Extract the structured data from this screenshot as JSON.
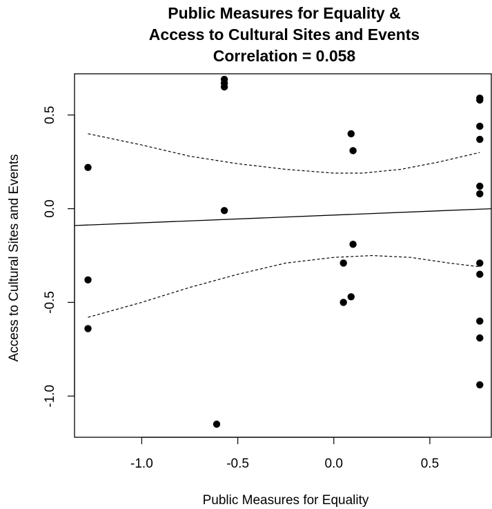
{
  "chart_data": {
    "type": "scatter",
    "title": [
      "Public Measures for Equality &",
      "Access to Cultural Sites and Events",
      "Correlation = 0.058"
    ],
    "xlabel": "Public Measures for Equality",
    "ylabel": "Access to Cultural Sites and Events",
    "xlim": [
      -1.35,
      0.82
    ],
    "ylim": [
      -1.22,
      0.72
    ],
    "xticks": [
      -1.0,
      -0.5,
      0.0,
      0.5
    ],
    "xtick_labels": [
      "-1.0",
      "-0.5",
      "0.0",
      "0.5"
    ],
    "yticks": [
      -1.0,
      -0.5,
      0.0,
      0.5
    ],
    "ytick_labels": [
      "-1.0",
      "-0.5",
      "0.0",
      "0.5"
    ],
    "grid": false,
    "points": [
      {
        "x": -1.28,
        "y": 0.22
      },
      {
        "x": -1.28,
        "y": -0.38
      },
      {
        "x": -1.28,
        "y": -0.64
      },
      {
        "x": -0.57,
        "y": 0.69
      },
      {
        "x": -0.57,
        "y": 0.67
      },
      {
        "x": -0.57,
        "y": 0.65
      },
      {
        "x": -0.57,
        "y": -0.01
      },
      {
        "x": -0.61,
        "y": -1.15
      },
      {
        "x": 0.09,
        "y": 0.4
      },
      {
        "x": 0.1,
        "y": 0.31
      },
      {
        "x": 0.1,
        "y": -0.19
      },
      {
        "x": 0.05,
        "y": -0.29
      },
      {
        "x": 0.09,
        "y": -0.47
      },
      {
        "x": 0.05,
        "y": -0.5
      },
      {
        "x": 0.76,
        "y": 0.59
      },
      {
        "x": 0.76,
        "y": 0.58
      },
      {
        "x": 0.76,
        "y": 0.44
      },
      {
        "x": 0.76,
        "y": 0.37
      },
      {
        "x": 0.76,
        "y": 0.12
      },
      {
        "x": 0.76,
        "y": 0.08
      },
      {
        "x": 0.76,
        "y": -0.29
      },
      {
        "x": 0.76,
        "y": -0.35
      },
      {
        "x": 0.76,
        "y": -0.6
      },
      {
        "x": 0.76,
        "y": -0.69
      },
      {
        "x": 0.76,
        "y": -0.94
      }
    ],
    "fit_line": [
      {
        "x": -1.35,
        "y": -0.09
      },
      {
        "x": 0.82,
        "y": 0.0
      }
    ],
    "confidence_upper": [
      {
        "x": -1.28,
        "y": 0.4
      },
      {
        "x": -1.0,
        "y": 0.34
      },
      {
        "x": -0.75,
        "y": 0.28
      },
      {
        "x": -0.5,
        "y": 0.24
      },
      {
        "x": -0.25,
        "y": 0.21
      },
      {
        "x": 0.0,
        "y": 0.19
      },
      {
        "x": 0.15,
        "y": 0.19
      },
      {
        "x": 0.35,
        "y": 0.21
      },
      {
        "x": 0.55,
        "y": 0.25
      },
      {
        "x": 0.76,
        "y": 0.3
      }
    ],
    "confidence_lower": [
      {
        "x": -1.28,
        "y": -0.58
      },
      {
        "x": -1.0,
        "y": -0.5
      },
      {
        "x": -0.75,
        "y": -0.42
      },
      {
        "x": -0.5,
        "y": -0.35
      },
      {
        "x": -0.25,
        "y": -0.29
      },
      {
        "x": 0.0,
        "y": -0.26
      },
      {
        "x": 0.2,
        "y": -0.25
      },
      {
        "x": 0.4,
        "y": -0.26
      },
      {
        "x": 0.6,
        "y": -0.29
      },
      {
        "x": 0.76,
        "y": -0.31
      }
    ]
  }
}
